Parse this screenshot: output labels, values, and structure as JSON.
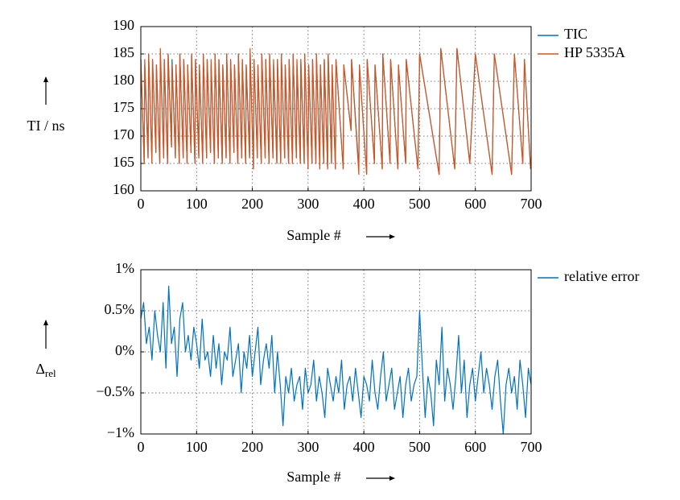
{
  "chart_data": [
    {
      "type": "line",
      "x_label": "Sample #",
      "y_label": "TI / ns",
      "grid": true,
      "xlim": [
        0,
        700
      ],
      "ylim": [
        160,
        190
      ],
      "xticks": [
        0,
        100,
        200,
        300,
        400,
        500,
        600,
        700
      ],
      "yticks": [
        160,
        165,
        170,
        175,
        180,
        185,
        190
      ],
      "x": [
        0,
        6,
        7,
        13,
        14,
        20,
        21,
        27,
        28,
        34,
        35,
        41,
        42,
        48,
        49,
        55,
        56,
        62,
        63,
        69,
        70,
        76,
        77,
        83,
        84,
        90,
        91,
        97,
        98,
        104,
        105,
        111,
        112,
        118,
        119,
        125,
        126,
        132,
        133,
        139,
        140,
        146,
        147,
        153,
        154,
        160,
        161,
        167,
        168,
        174,
        175,
        181,
        182,
        188,
        189,
        195,
        196,
        202,
        203,
        209,
        210,
        216,
        217,
        223,
        224,
        230,
        231,
        237,
        238,
        244,
        245,
        251,
        252,
        258,
        259,
        265,
        266,
        272,
        273,
        279,
        280,
        286,
        287,
        293,
        294,
        300,
        301,
        307,
        308,
        314,
        315,
        321,
        322,
        328,
        329,
        335,
        336,
        342,
        343,
        349,
        350,
        363,
        364,
        377,
        378,
        391,
        392,
        405,
        406,
        419,
        420,
        433,
        434,
        447,
        448,
        461,
        462,
        475,
        476,
        497,
        500,
        535,
        538,
        563,
        567,
        590,
        600,
        630,
        634,
        665,
        670,
        685,
        688,
        699
      ],
      "series": [
        {
          "name": "TIC",
          "color": "#0072bd",
          "values": [
            184,
            165,
            183,
            166,
            185,
            165,
            184,
            167,
            183,
            165,
            185,
            166,
            184,
            165,
            185,
            168,
            184,
            166,
            183,
            165,
            185,
            166,
            184,
            165,
            183,
            167,
            185,
            165,
            184,
            166,
            183,
            165,
            185,
            166,
            184,
            167,
            183,
            165,
            185,
            166,
            184,
            165,
            183,
            166,
            185,
            165,
            184,
            167,
            183,
            165,
            185,
            166,
            184,
            165,
            183,
            166,
            185,
            164,
            184,
            166,
            183,
            165,
            185,
            166,
            184,
            165,
            185,
            166,
            183,
            165,
            184,
            165,
            185,
            166,
            183,
            165,
            184,
            165,
            185,
            166,
            183,
            165,
            184,
            165,
            185,
            164,
            183,
            165,
            184,
            165,
            185,
            164,
            183,
            165,
            184,
            164,
            185,
            165,
            183,
            164,
            184,
            164,
            183,
            171,
            184,
            164,
            183,
            163,
            184,
            165,
            183,
            164,
            185,
            165,
            184,
            164,
            183,
            165,
            184,
            164,
            185,
            163,
            186,
            164,
            186,
            165,
            185,
            163,
            185,
            163,
            185,
            165,
            184,
            164
          ]
        },
        {
          "name": "HP 5335A",
          "color": "#d95319",
          "values": [
            184,
            165,
            184,
            166,
            185,
            165,
            184,
            167,
            183,
            165,
            186,
            166,
            184,
            165,
            185,
            168,
            183,
            166,
            183,
            165,
            185,
            166,
            184,
            165,
            183,
            167,
            185,
            165,
            184,
            166,
            183,
            165,
            185,
            166,
            184,
            167,
            184,
            165,
            185,
            166,
            184,
            165,
            183,
            166,
            185,
            165,
            184,
            167,
            183,
            165,
            185,
            166,
            184,
            165,
            183,
            166,
            186,
            164,
            184,
            166,
            183,
            165,
            185,
            166,
            184,
            165,
            185,
            166,
            184,
            165,
            184,
            165,
            185,
            166,
            183,
            165,
            184,
            165,
            185,
            166,
            184,
            165,
            184,
            165,
            185,
            164,
            183,
            165,
            184,
            165,
            185,
            164,
            183,
            165,
            184,
            164,
            185,
            165,
            183,
            164,
            184,
            164,
            183,
            171,
            184,
            163,
            183,
            163,
            184,
            165,
            183,
            164,
            185,
            165,
            184,
            164,
            183,
            165,
            184,
            164,
            185,
            163,
            186,
            164,
            186,
            165,
            185,
            163,
            185,
            163,
            185,
            165,
            184,
            164
          ]
        }
      ]
    },
    {
      "type": "line",
      "x_label": "Sample #",
      "y_label": "Δ",
      "y_label_sub": "rel",
      "grid": true,
      "xlim": [
        0,
        700
      ],
      "ylim": [
        -1,
        1
      ],
      "xticks": [
        0,
        100,
        200,
        300,
        400,
        500,
        600,
        700
      ],
      "yticks": [
        {
          "value": -1,
          "label": "−1%"
        },
        {
          "value": -0.5,
          "label": "−0.5%"
        },
        {
          "value": 0,
          "label": "0%"
        },
        {
          "value": 0.5,
          "label": "0.5%"
        },
        {
          "value": 1,
          "label": "1%"
        }
      ],
      "x": [
        0,
        5,
        10,
        15,
        20,
        25,
        30,
        35,
        40,
        45,
        50,
        55,
        60,
        65,
        70,
        75,
        80,
        85,
        90,
        95,
        100,
        105,
        110,
        115,
        120,
        125,
        130,
        135,
        140,
        145,
        150,
        155,
        160,
        165,
        170,
        175,
        180,
        185,
        190,
        195,
        200,
        205,
        210,
        215,
        220,
        225,
        230,
        235,
        240,
        245,
        250,
        255,
        260,
        265,
        270,
        275,
        280,
        285,
        290,
        295,
        300,
        305,
        310,
        315,
        320,
        325,
        330,
        335,
        340,
        345,
        350,
        355,
        360,
        365,
        370,
        375,
        380,
        385,
        390,
        395,
        400,
        405,
        410,
        415,
        420,
        425,
        430,
        435,
        440,
        445,
        450,
        455,
        460,
        465,
        470,
        475,
        480,
        485,
        490,
        495,
        500,
        505,
        510,
        515,
        520,
        525,
        530,
        535,
        540,
        545,
        550,
        555,
        560,
        565,
        570,
        575,
        580,
        585,
        590,
        595,
        600,
        605,
        610,
        615,
        620,
        625,
        630,
        635,
        640,
        645,
        650,
        655,
        660,
        665,
        670,
        675,
        680,
        685,
        690,
        695,
        700
      ],
      "series": [
        {
          "name": "relative error",
          "color": "#0072bd",
          "values": [
            0.4,
            0.6,
            0.1,
            0.3,
            -0.1,
            0.5,
            0.2,
            0.0,
            0.6,
            -0.2,
            0.8,
            0.1,
            0.3,
            -0.3,
            0.4,
            0.6,
            0.0,
            0.2,
            -0.1,
            0.3,
            0.1,
            -0.2,
            0.4,
            -0.1,
            0.0,
            -0.3,
            0.2,
            -0.2,
            0.1,
            -0.4,
            0.0,
            -0.1,
            0.3,
            -0.3,
            -0.1,
            0.1,
            -0.5,
            0.0,
            -0.2,
            0.2,
            -0.3,
            0.0,
            0.3,
            -0.4,
            -0.1,
            0.1,
            -0.2,
            0.2,
            -0.5,
            0.0,
            -0.4,
            -0.9,
            -0.3,
            -0.5,
            -0.2,
            -0.6,
            -0.4,
            -0.3,
            -0.7,
            -0.2,
            -0.5,
            -0.4,
            -0.1,
            -0.6,
            -0.3,
            -0.5,
            -0.8,
            -0.2,
            -0.4,
            -0.6,
            -0.3,
            -0.5,
            -0.1,
            -0.7,
            -0.4,
            -0.3,
            -0.6,
            -0.2,
            -0.5,
            -0.8,
            -0.3,
            -0.4,
            -0.6,
            -0.1,
            -0.5,
            -0.7,
            -0.3,
            0.0,
            -0.6,
            -0.4,
            -0.2,
            -0.7,
            -0.5,
            -0.3,
            -0.8,
            -0.4,
            -0.2,
            -0.6,
            -0.4,
            -0.3,
            0.5,
            -0.2,
            -0.8,
            -0.3,
            -0.5,
            -0.9,
            -0.1,
            -0.4,
            0.3,
            -0.6,
            -0.2,
            -0.4,
            -0.7,
            -0.3,
            0.2,
            -0.5,
            -0.1,
            -0.8,
            -0.4,
            -0.2,
            -0.6,
            -0.3,
            0.0,
            -0.5,
            -0.2,
            -0.4,
            -0.7,
            -0.3,
            -0.1,
            -0.6,
            -1.0,
            -0.4,
            -0.2,
            -0.5,
            -0.3,
            -0.7,
            -0.1,
            -0.4,
            -0.8,
            -0.2,
            -0.4
          ]
        }
      ]
    }
  ]
}
